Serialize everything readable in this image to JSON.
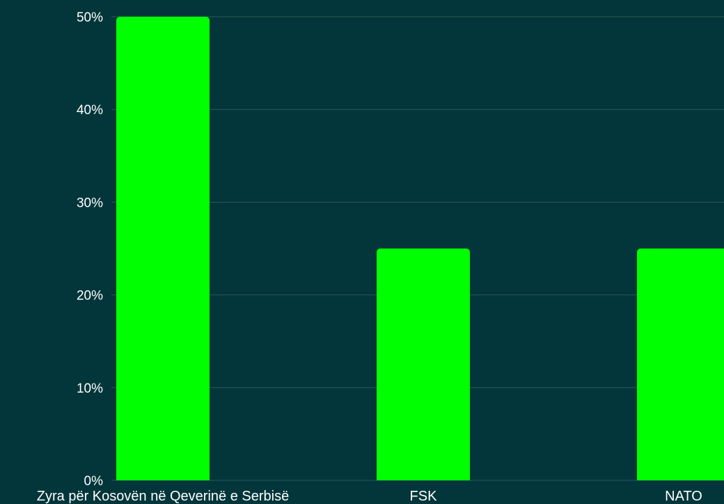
{
  "colors": {
    "background": "#03363b",
    "bar": "#00ff00",
    "gridline": "#2a5a5a",
    "text": "#ffffff"
  },
  "chart_data": {
    "type": "bar",
    "categories": [
      "Zyra për Kosovën në Qeverinë e Serbisë",
      "FSK",
      "NATO"
    ],
    "values": [
      50,
      25,
      25
    ],
    "value_unit": "%",
    "ylim": [
      0,
      50
    ],
    "yticks": [
      0,
      10,
      20,
      30,
      40,
      50
    ],
    "ytick_labels": [
      "0%",
      "10%",
      "20%",
      "30%",
      "40%",
      "50%"
    ],
    "title": "",
    "xlabel": "",
    "ylabel": "",
    "grid": true,
    "legend": "none"
  }
}
